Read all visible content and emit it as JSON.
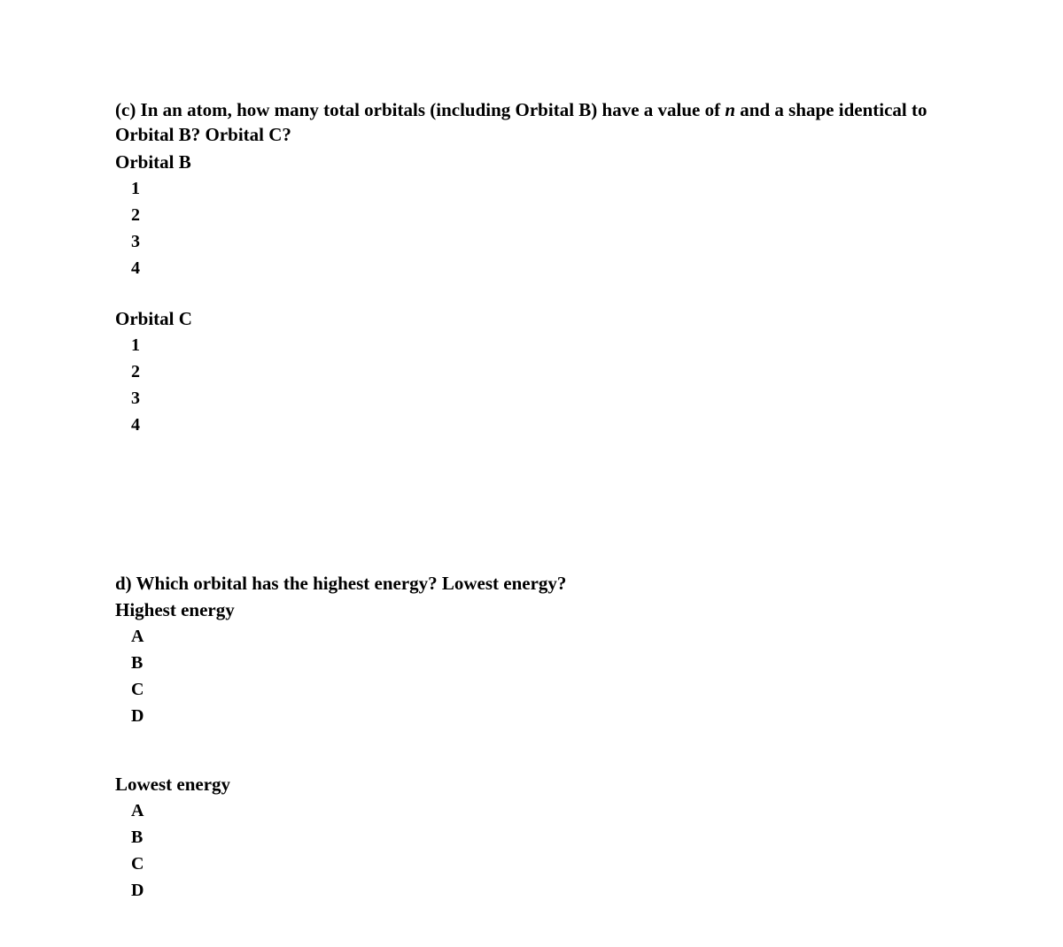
{
  "partC": {
    "prompt_before_italic": "(c) In an atom, how many total orbitals (including Orbital B) have a value of ",
    "italic_var": "n",
    "prompt_after_italic": " and a shape identical to Orbital B? Orbital C?",
    "groups": [
      {
        "label": "Orbital B",
        "options": [
          "1",
          "2",
          "3",
          "4"
        ]
      },
      {
        "label": "Orbital C",
        "options": [
          "1",
          "2",
          "3",
          "4"
        ]
      }
    ]
  },
  "partD": {
    "prompt": "d) Which orbital has the highest energy? Lowest energy?",
    "groups": [
      {
        "label": "Highest energy",
        "options": [
          "A",
          "B",
          "C",
          "D"
        ]
      },
      {
        "label": "Lowest energy",
        "options": [
          "A",
          "B",
          "C",
          "D"
        ]
      }
    ]
  }
}
